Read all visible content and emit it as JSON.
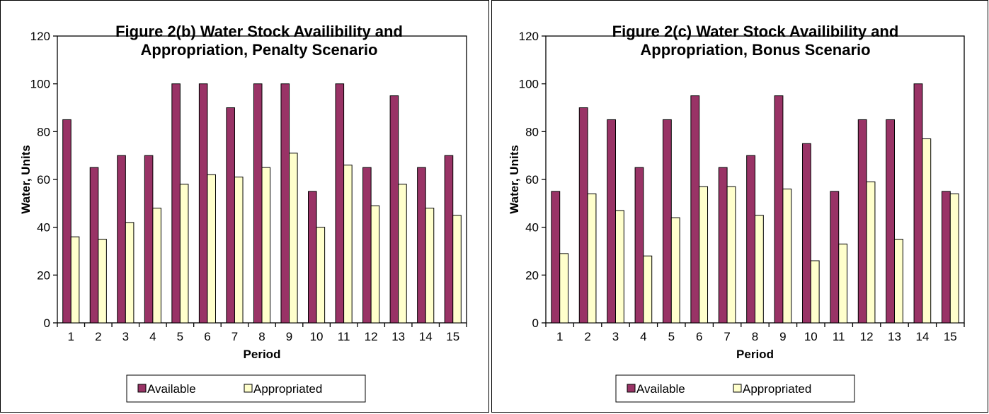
{
  "chart_data": [
    {
      "type": "bar",
      "title_lines": [
        "Figure 2(b) Water Stock Availibility and",
        "Appropriation, Penalty Scenario"
      ],
      "xlabel": "Period",
      "ylabel": "Water, Units",
      "ylim": [
        0,
        120
      ],
      "yticks": [
        0,
        20,
        40,
        60,
        80,
        100,
        120
      ],
      "grid": false,
      "legend_position": "bottom",
      "categories": [
        "1",
        "2",
        "3",
        "4",
        "5",
        "6",
        "7",
        "8",
        "9",
        "10",
        "11",
        "12",
        "13",
        "14",
        "15"
      ],
      "series": [
        {
          "name": "Available",
          "color": "#993366",
          "values": [
            85,
            65,
            70,
            70,
            100,
            100,
            90,
            100,
            100,
            55,
            100,
            65,
            95,
            65,
            70
          ]
        },
        {
          "name": "Appropriated",
          "color": "#FFFFCC",
          "values": [
            36,
            35,
            42,
            48,
            58,
            62,
            61,
            65,
            71,
            40,
            66,
            49,
            58,
            48,
            45
          ]
        }
      ]
    },
    {
      "type": "bar",
      "title_lines": [
        "Figure 2(c) Water Stock Availibility and",
        "Appropriation, Bonus Scenario"
      ],
      "xlabel": "Period",
      "ylabel": "Water, Units",
      "ylim": [
        0,
        120
      ],
      "yticks": [
        0,
        20,
        40,
        60,
        80,
        100,
        120
      ],
      "grid": false,
      "legend_position": "bottom",
      "categories": [
        "1",
        "2",
        "3",
        "4",
        "5",
        "6",
        "7",
        "8",
        "9",
        "10",
        "11",
        "12",
        "13",
        "14",
        "15"
      ],
      "series": [
        {
          "name": "Available",
          "color": "#993366",
          "values": [
            55,
            90,
            85,
            65,
            85,
            95,
            65,
            70,
            95,
            75,
            55,
            85,
            85,
            100,
            55
          ]
        },
        {
          "name": "Appropriated",
          "color": "#FFFFCC",
          "values": [
            29,
            54,
            47,
            28,
            44,
            57,
            57,
            45,
            56,
            26,
            33,
            59,
            35,
            77,
            54
          ]
        }
      ]
    }
  ]
}
